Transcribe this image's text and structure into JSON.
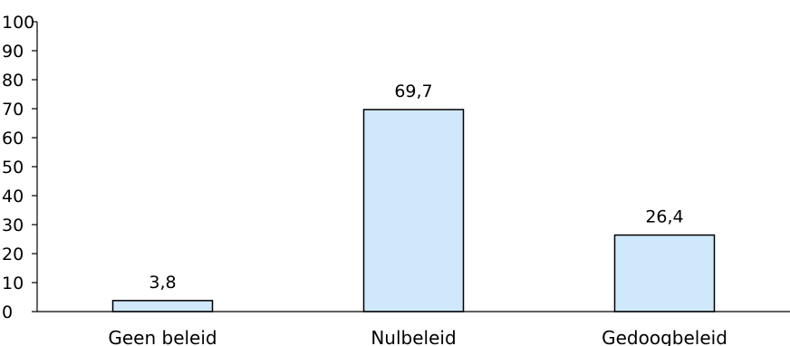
{
  "chart_data": {
    "type": "bar",
    "categories": [
      "Geen beleid",
      "Nulbeleid",
      "Gedoogbeleid"
    ],
    "values": [
      3.8,
      69.7,
      26.4
    ],
    "data_labels": [
      "3,8",
      "69,7",
      "26,4"
    ],
    "title": "",
    "xlabel": "",
    "ylabel": "",
    "ylim": [
      0,
      100
    ],
    "y_ticks": [
      0,
      10,
      20,
      30,
      40,
      50,
      60,
      70,
      80,
      90,
      100
    ],
    "grid": false,
    "legend": "none",
    "bar_fill": "#cfe8fb",
    "bar_stroke": "#000000"
  }
}
